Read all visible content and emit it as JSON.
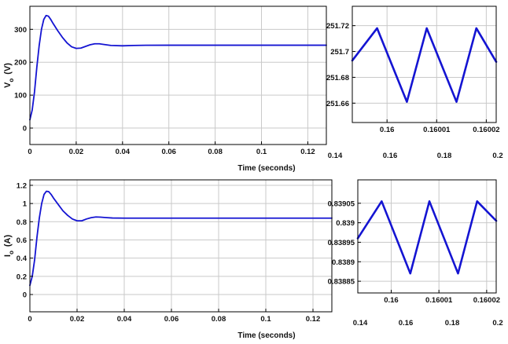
{
  "colors": {
    "trace": "#1414d2",
    "grid": "#c9c9c9",
    "axis": "#000000",
    "background": "#ffffff"
  },
  "chart_data": [
    {
      "name": "vo-main",
      "type": "line",
      "ylabel": {
        "main": "V",
        "sub": "o",
        "unit": "(V)"
      },
      "xlabel": "Time (seconds)",
      "xlim": [
        0,
        0.128
      ],
      "ylim": [
        -50,
        370
      ],
      "x_ticks": [
        0,
        0.02,
        0.04,
        0.06,
        0.08,
        0.1,
        0.12
      ],
      "x_tick_labels": [
        "0",
        "0.02",
        "0.04",
        "0.06",
        "0.08",
        "0.1",
        "0.12"
      ],
      "y_ticks": [
        0,
        100,
        200,
        300
      ],
      "y_tick_labels": [
        "0",
        "100",
        "200",
        "300"
      ],
      "grid": true,
      "series": [
        {
          "x": [
            0,
            0.001,
            0.002,
            0.003,
            0.004,
            0.005,
            0.006,
            0.007,
            0.008,
            0.009,
            0.01,
            0.012,
            0.014,
            0.016,
            0.018,
            0.02,
            0.022,
            0.024,
            0.026,
            0.028,
            0.03,
            0.032,
            0.035,
            0.04,
            0.045,
            0.05,
            0.06,
            0.08,
            0.1,
            0.128
          ],
          "y": [
            25,
            55,
            110,
            185,
            250,
            300,
            330,
            342,
            340,
            330,
            318,
            296,
            276,
            259,
            247,
            242,
            243,
            248,
            253,
            256,
            256,
            254,
            251,
            250,
            251,
            251.5,
            251.7,
            251.7,
            251.7,
            251.7
          ]
        }
      ]
    },
    {
      "name": "vo-zoom",
      "type": "line",
      "xlim": [
        0.159993,
        0.160022
      ],
      "ylim": [
        251.645,
        251.735
      ],
      "x_ticks": [
        0.16,
        0.16001,
        0.16002
      ],
      "x_tick_labels": [
        "0.16",
        "0.16001",
        "0.16002"
      ],
      "y_ticks": [
        251.66,
        251.68,
        251.7,
        251.72
      ],
      "y_tick_labels": [
        "251.66",
        "251.68",
        "251.7",
        "251.72"
      ],
      "grid": true,
      "series": [
        {
          "x": [
            0.159993,
            0.159998,
            0.160004,
            0.160008,
            0.160014,
            0.160018,
            0.160022
          ],
          "y": [
            251.693,
            251.718,
            251.661,
            251.718,
            251.661,
            251.718,
            251.692
          ]
        }
      ]
    },
    {
      "name": "io-main",
      "type": "line",
      "ylabel": {
        "main": "I",
        "sub": "o",
        "unit": "(A)"
      },
      "xlabel": "Time (seconds)",
      "xlim": [
        0,
        0.128
      ],
      "ylim": [
        -0.19,
        1.26
      ],
      "x_ticks": [
        0,
        0.02,
        0.04,
        0.06,
        0.08,
        0.1,
        0.12
      ],
      "x_tick_labels": [
        "0",
        "0.02",
        "0.04",
        "0.06",
        "0.08",
        "0.1",
        "0.12"
      ],
      "y_ticks": [
        0,
        0.2,
        0.4,
        0.6,
        0.8,
        1,
        1.2
      ],
      "y_tick_labels": [
        "0",
        "0.2",
        "0.4",
        "0.6",
        "0.8",
        "1",
        "1.2"
      ],
      "grid": true,
      "series": [
        {
          "x": [
            0,
            0.001,
            0.002,
            0.003,
            0.004,
            0.005,
            0.006,
            0.007,
            0.008,
            0.009,
            0.01,
            0.012,
            0.014,
            0.016,
            0.018,
            0.02,
            0.022,
            0.024,
            0.026,
            0.028,
            0.03,
            0.032,
            0.035,
            0.04,
            0.045,
            0.05,
            0.06,
            0.08,
            0.1,
            0.128
          ],
          "y": [
            0.1,
            0.2,
            0.38,
            0.63,
            0.84,
            1.0,
            1.1,
            1.135,
            1.13,
            1.1,
            1.06,
            0.99,
            0.92,
            0.87,
            0.83,
            0.81,
            0.81,
            0.83,
            0.845,
            0.852,
            0.85,
            0.846,
            0.841,
            0.839,
            0.839,
            0.839,
            0.839,
            0.839,
            0.839,
            0.839
          ]
        }
      ]
    },
    {
      "name": "io-zoom",
      "type": "line",
      "xlim": [
        0.159993,
        0.160022
      ],
      "ylim": [
        0.83882,
        0.83911
      ],
      "x_ticks": [
        0.16,
        0.16001,
        0.16002
      ],
      "x_tick_labels": [
        "0.16",
        "0.16001",
        "0.16002"
      ],
      "y_ticks": [
        0.83885,
        0.8389,
        0.83895,
        0.839,
        0.83905
      ],
      "y_tick_labels": [
        "0.83885",
        "0.8389",
        "0.83895",
        "0.839",
        "0.83905"
      ],
      "grid": true,
      "series": [
        {
          "x": [
            0.159993,
            0.159998,
            0.160004,
            0.160008,
            0.160014,
            0.160018,
            0.160022
          ],
          "y": [
            0.83896,
            0.839055,
            0.83887,
            0.839055,
            0.83887,
            0.839055,
            0.839005
          ]
        }
      ]
    }
  ],
  "figure_labels": {
    "top_xlabel": "Time (seconds)",
    "bottom_xlabel": "Time (seconds)",
    "outer_x_ticks": [
      "0.14",
      "0.16",
      "0.18",
      "0.2"
    ]
  }
}
